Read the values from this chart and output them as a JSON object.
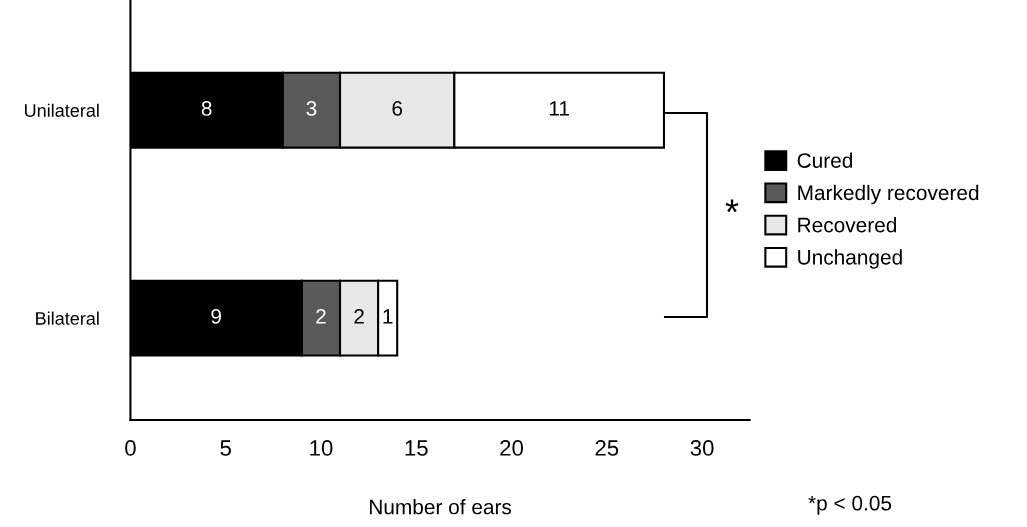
{
  "chart_data": {
    "type": "bar",
    "orientation": "horizontal",
    "stacked": true,
    "xlabel": "Number of ears",
    "categories": [
      "Unilateral",
      "Bilateral"
    ],
    "series": [
      {
        "name": "Cured",
        "color": "#000000",
        "values": [
          8,
          9
        ]
      },
      {
        "name": "Markedly recovered",
        "color": "#5a5a5a",
        "values": [
          3,
          2
        ]
      },
      {
        "name": "Recovered",
        "color": "#e8e8e8",
        "values": [
          6,
          2
        ]
      },
      {
        "name": "Unchanged",
        "color": "#ffffff",
        "values": [
          11,
          1
        ]
      }
    ],
    "xlim": [
      0,
      32.5
    ],
    "xticks": [
      0,
      5,
      10,
      15,
      20,
      25,
      30
    ],
    "data_labels": true,
    "grid": false,
    "legend": "right",
    "annotations": [
      "*",
      "*p < 0.05"
    ]
  }
}
